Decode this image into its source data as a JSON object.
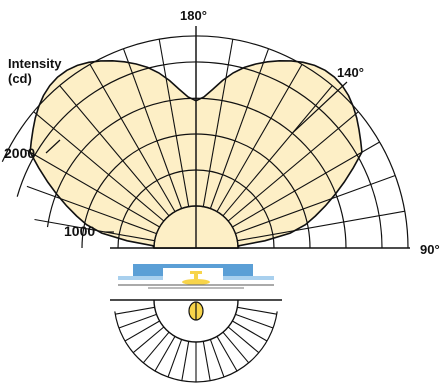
{
  "diagram": {
    "angle_labels": [
      {
        "key": "a180",
        "text": "180°"
      },
      {
        "key": "a140",
        "text": "140°"
      },
      {
        "key": "a90",
        "text": "90°"
      }
    ],
    "intensity_axis": {
      "label_line1": "Intensity",
      "label_line2": "(cd)",
      "ticks": [
        "2000",
        "1000"
      ]
    },
    "colors": {
      "grid": "#111111",
      "curve_fill": "#fdefc6",
      "fixture_blue": "#5b9fd6",
      "fixture_light_blue": "#a9d0ee",
      "fixture_yellow": "#f7d44a"
    }
  }
}
